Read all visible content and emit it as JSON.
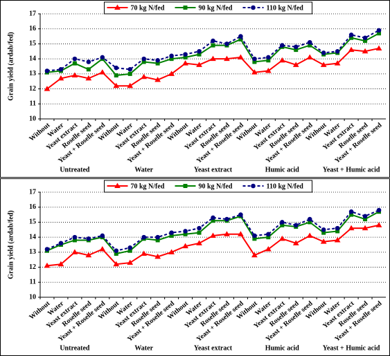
{
  "chart_data": [
    {
      "type": "line",
      "y_label": "Grain yield (ardab/fed)",
      "ylim": [
        10,
        17
      ],
      "yticks": [
        10,
        11,
        12,
        13,
        14,
        15,
        16,
        17
      ],
      "grid": true,
      "categories": [
        "Without",
        "Water",
        "Yeast extract",
        "Roselle seed",
        "Yeast + Roselle seed",
        "Without",
        "Water",
        "Yeast extract",
        "Roselle seed",
        "Yeast + Roselle seed",
        "Without",
        "Water",
        "Yeast extract",
        "Roselle seed",
        "Yeast + Roselle seed",
        "Without",
        "Water",
        "Yeast extract",
        "Roselle seed",
        "Yeast + Roselle seed",
        "Without",
        "Water",
        "Yeast extract",
        "Roselle seed",
        "Yeast + Roselle seed"
      ],
      "groups": [
        "Untreated",
        "Water",
        "Yeast extract",
        "Humic acid",
        "Yeast + Humic acid"
      ],
      "series": [
        {
          "name": "70 kg N/fed",
          "color": "#ff0000",
          "marker": "triangle",
          "line_style": "solid",
          "values": [
            12.0,
            12.7,
            12.9,
            12.7,
            13.1,
            12.2,
            12.2,
            12.8,
            12.6,
            13.0,
            13.7,
            13.6,
            14.0,
            14.0,
            14.1,
            13.1,
            13.2,
            13.9,
            13.6,
            14.1,
            13.6,
            13.7,
            14.6,
            14.5,
            14.7
          ]
        },
        {
          "name": "90 kg N/fed",
          "color": "#008000",
          "marker": "square",
          "line_style": "solid",
          "values": [
            13.1,
            13.2,
            13.7,
            13.3,
            14.0,
            12.9,
            13.0,
            13.8,
            13.7,
            14.0,
            14.1,
            14.3,
            14.9,
            14.9,
            15.3,
            13.8,
            13.9,
            14.8,
            14.6,
            14.9,
            14.3,
            14.4,
            15.4,
            15.2,
            15.7
          ]
        },
        {
          "name": "110 kg N/fed",
          "color": "#000080",
          "marker": "circle",
          "line_style": "dashed",
          "values": [
            13.2,
            13.3,
            14.0,
            13.8,
            14.1,
            13.4,
            13.3,
            14.0,
            13.9,
            14.2,
            14.3,
            14.5,
            15.2,
            15.0,
            15.5,
            14.0,
            14.1,
            14.9,
            14.8,
            15.1,
            14.4,
            14.5,
            15.6,
            15.4,
            15.9
          ]
        }
      ]
    },
    {
      "type": "line",
      "y_label": "Grain yield (ardab/fed)",
      "ylim": [
        10,
        17
      ],
      "yticks": [
        10,
        11,
        12,
        13,
        14,
        15,
        16,
        17
      ],
      "grid": true,
      "categories": [
        "Without",
        "Water",
        "Yeast extract",
        "Roselle seed",
        "Yeast + Roselle seed",
        "Without",
        "Water",
        "Yeast extract",
        "Roselle seed",
        "Yeast + Roselle seed",
        "Without",
        "Water",
        "Yeast extract",
        "Roselle seed",
        "Yeast + Roselle seed",
        "Without",
        "Water",
        "Yeast extract",
        "Roselle seed",
        "Yeast + Roselle seed",
        "Without",
        "Water",
        "Yeast extract",
        "Roselle seed",
        "Yeast + Roselle seed"
      ],
      "groups": [
        "Untreated",
        "Water",
        "Yeast extract",
        "Humic acid",
        "Yeast + Humic acid"
      ],
      "series": [
        {
          "name": "70 kg N/fed",
          "color": "#ff0000",
          "marker": "triangle",
          "line_style": "solid",
          "values": [
            12.1,
            12.2,
            13.0,
            12.8,
            13.2,
            12.2,
            12.3,
            12.9,
            12.7,
            13.0,
            13.4,
            13.6,
            14.1,
            14.2,
            14.2,
            12.8,
            13.2,
            13.9,
            13.6,
            14.1,
            13.7,
            13.8,
            14.6,
            14.6,
            14.8
          ]
        },
        {
          "name": "90 kg N/fed",
          "color": "#008000",
          "marker": "square",
          "line_style": "solid",
          "values": [
            13.1,
            13.5,
            13.8,
            13.8,
            14.0,
            12.9,
            13.1,
            13.9,
            13.8,
            14.1,
            14.2,
            14.3,
            15.1,
            15.1,
            15.4,
            13.9,
            14.0,
            14.8,
            14.7,
            15.0,
            14.3,
            14.4,
            15.5,
            15.2,
            15.7
          ]
        },
        {
          "name": "110 kg N/fed",
          "color": "#000080",
          "marker": "circle",
          "line_style": "dashed",
          "values": [
            13.2,
            13.6,
            14.0,
            13.9,
            14.1,
            13.1,
            13.3,
            14.0,
            14.0,
            14.3,
            14.4,
            14.6,
            15.3,
            15.2,
            15.5,
            14.1,
            14.2,
            15.0,
            14.8,
            15.2,
            14.5,
            14.6,
            15.7,
            15.4,
            15.8
          ]
        }
      ]
    }
  ]
}
